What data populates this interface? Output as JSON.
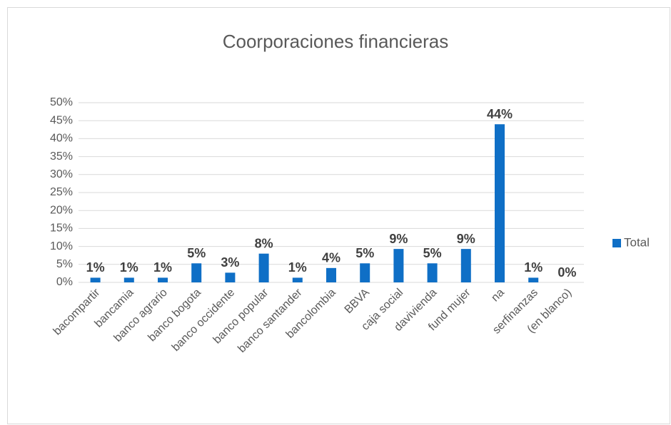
{
  "chart_data": {
    "type": "bar",
    "title": "Coorporaciones financieras",
    "categories": [
      "bacompartir",
      "bancamia",
      "banco agrario",
      "banco bogota",
      "banco occidente",
      "banco popular",
      "banco santander",
      "bancolombia",
      "BBVA",
      "caja social",
      "davivienda",
      "fund mujer",
      "na",
      "serfinanzas",
      "(en blanco)"
    ],
    "series": [
      {
        "name": "Total",
        "color": "#0f6fc6",
        "values": [
          1.3,
          1.3,
          1.3,
          5.3,
          2.7,
          8,
          1.3,
          4,
          5.3,
          9.3,
          5.3,
          9.3,
          44,
          1.3,
          0
        ],
        "value_labels": [
          "1%",
          "1%",
          "1%",
          "5%",
          "3%",
          "8%",
          "1%",
          "4%",
          "5%",
          "9%",
          "5%",
          "9%",
          "44%",
          "1%",
          "0%"
        ]
      }
    ],
    "ylim": [
      0,
      50
    ],
    "yticks": [
      {
        "value": 0,
        "label": "0%"
      },
      {
        "value": 5,
        "label": "5%"
      },
      {
        "value": 10,
        "label": "10%"
      },
      {
        "value": 15,
        "label": "15%"
      },
      {
        "value": 20,
        "label": "20%"
      },
      {
        "value": 25,
        "label": "25%"
      },
      {
        "value": 30,
        "label": "30%"
      },
      {
        "value": 35,
        "label": "35%"
      },
      {
        "value": 40,
        "label": "40%"
      },
      {
        "value": 45,
        "label": "45%"
      },
      {
        "value": 50,
        "label": "50%"
      }
    ],
    "grid": true,
    "legend": "right"
  }
}
